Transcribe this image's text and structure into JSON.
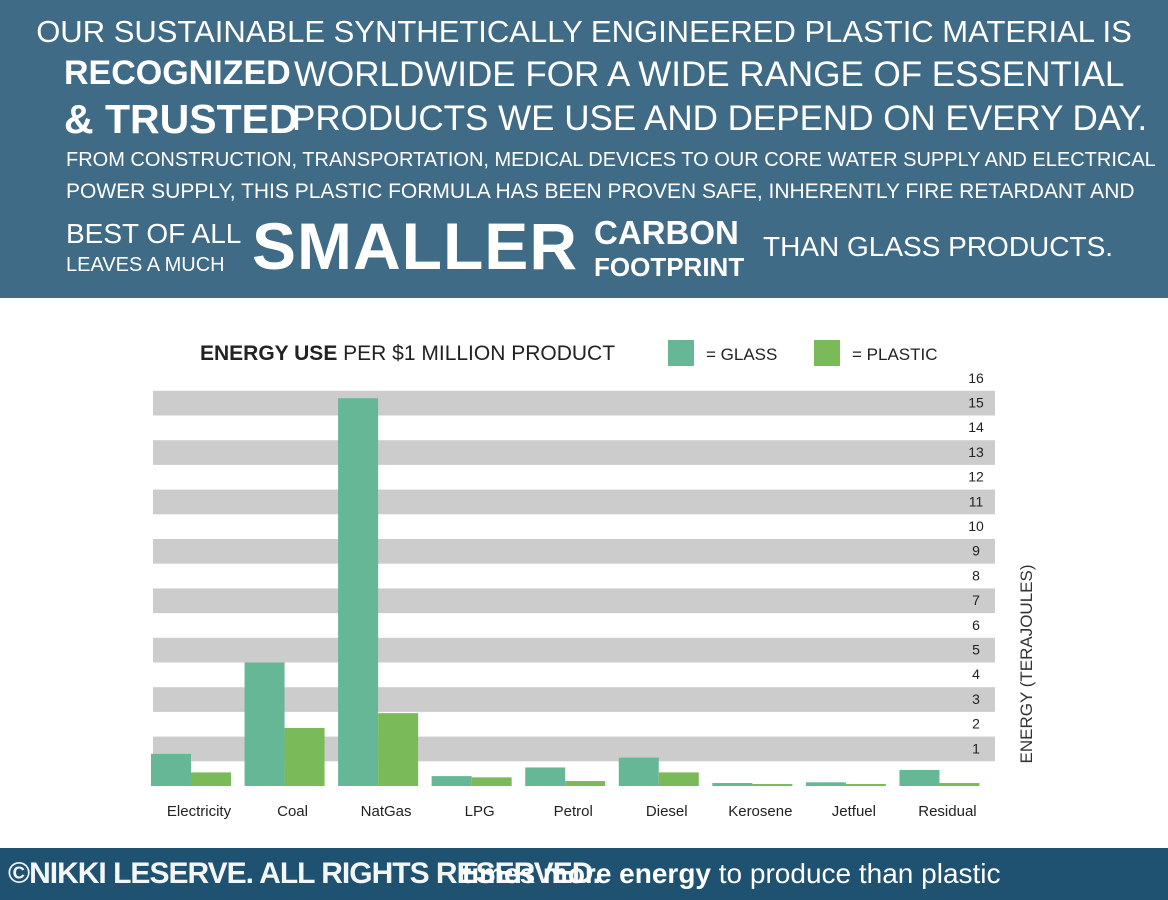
{
  "banner": {
    "line1": "OUR SUSTAINABLE SYNTHETICALLY ENGINEERED PLASTIC MATERIAL IS",
    "recognized": "RECOGNIZED",
    "trusted": "& TRUSTED",
    "line2": "WORLDWIDE FOR A WIDE RANGE OF ESSENTIAL",
    "line3": "PRODUCTS WE USE AND DEPEND ON EVERY DAY.",
    "line4": "FROM CONSTRUCTION, TRANSPORTATION, MEDICAL DEVICES TO OUR CORE WATER SUPPLY AND ELECTRICAL",
    "line5": "POWER SUPPLY, THIS PLASTIC FORMULA HAS BEEN PROVEN SAFE, INHERENTLY FIRE RETARDANT AND",
    "best_of_all": "BEST OF ALL",
    "leaves_a_much": "LEAVES A MUCH",
    "smaller": "SMALLER",
    "carbon": "CARBON",
    "footprint": "FOOTPRINT",
    "than_glass": "THAN GLASS PRODUCTS."
  },
  "footer": {
    "copyright": "©NIKKI LESERVE. ALL RIGHTS RESERVED.",
    "message_bold": "times more energy",
    "message_rest": " to produce than plastic"
  },
  "colors": {
    "banner_bg": "#3f6b86",
    "footer_bg": "#1f5270",
    "glass": "#66b796",
    "plastic": "#7aba58",
    "stripe": "#cdcccc"
  },
  "chart_data": {
    "type": "bar",
    "title_bold": "ENERGY USE",
    "title_rest": " PER $1 MILLION PRODUCT",
    "legend": [
      {
        "name": "= GLASS",
        "color": "#66b796"
      },
      {
        "name": "= PLASTIC",
        "color": "#7aba58"
      }
    ],
    "categories": [
      "Electricity",
      "Coal",
      "NatGas",
      "LPG",
      "Petrol",
      "Diesel",
      "Kerosene",
      "Jetfuel",
      "Residual"
    ],
    "series": [
      {
        "name": "Glass",
        "values": [
          1.3,
          5.0,
          15.7,
          0.4,
          0.75,
          1.15,
          0.12,
          0.15,
          0.65
        ]
      },
      {
        "name": "Plastic",
        "values": [
          0.55,
          2.35,
          2.95,
          0.35,
          0.2,
          0.55,
          0.08,
          0.08,
          0.12
        ]
      }
    ],
    "ylabel": "ENERGY (TERAJOULES)",
    "yticks": [
      1,
      2,
      3,
      4,
      5,
      6,
      7,
      8,
      9,
      10,
      11,
      12,
      13,
      14,
      15,
      16
    ],
    "ylim": [
      0,
      16
    ],
    "grid": true,
    "legend_position": "top-right",
    "axis_position": "right"
  }
}
